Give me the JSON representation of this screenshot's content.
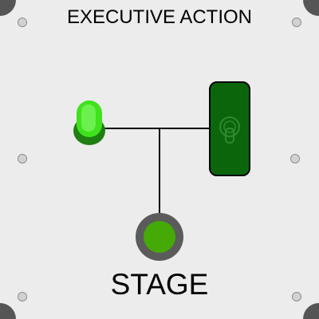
{
  "panel": {
    "title": "EXECUTIVE ACTION",
    "stage_label": "STAGE"
  },
  "controls": {
    "indicator_light": {
      "state": "on",
      "color": "#3fe21d"
    },
    "toggle_switch": {
      "state": "on",
      "color": "#0b660b",
      "icon": "toggle-lever-icon"
    },
    "stage_button": {
      "color": "#45aa05",
      "icon": "round-push-button"
    }
  },
  "colors": {
    "panel_background": "#ececec",
    "corner": "#555555",
    "screw": "#d2d2d2"
  }
}
